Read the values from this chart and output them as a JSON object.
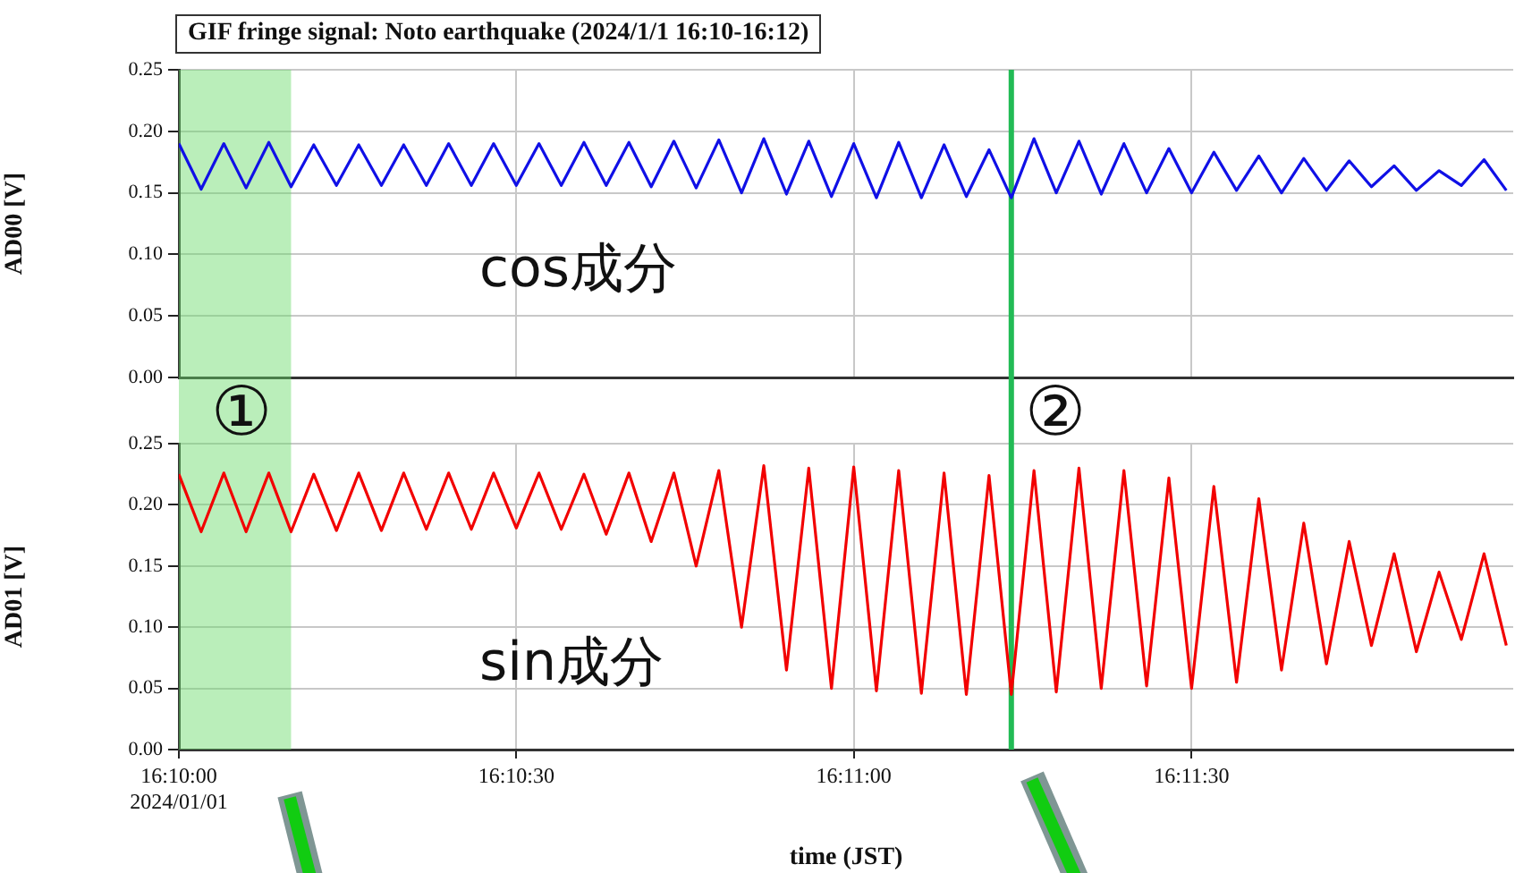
{
  "chart_data": [
    {
      "type": "line",
      "title": "GIF fringe signal: Noto earthquake (2024/1/1 16:10-16:12)",
      "ylabel": "AD00 [V]",
      "annotations": [
        "cos成分",
        "①",
        "②"
      ],
      "tick_labels": "y",
      "grid": true,
      "legend": false,
      "marker": "none",
      "xlim": [
        16.16667,
        16.19961
      ],
      "xticks": [
        16.16667,
        16.175,
        16.18333,
        16.19167
      ],
      "ylim": [
        0,
        0.25
      ],
      "yticks": [
        {
          "value": 0,
          "label": "0.00"
        },
        {
          "value": 0.05,
          "label": "0.05"
        },
        {
          "value": 0.1,
          "label": "0.10"
        },
        {
          "value": 0.15,
          "label": "0.15"
        },
        {
          "value": 0.2,
          "label": "0.20"
        },
        {
          "value": 0.25,
          "label": "0.25"
        }
      ],
      "bands": [
        {
          "axis": "x",
          "from": 16.16667,
          "to": 16.16944,
          "color": "#66d966"
        }
      ],
      "ref_lines": [
        {
          "axis": "x",
          "value": 16.18722,
          "color": "#22bb55"
        }
      ],
      "x": [
        16.16667,
        16.16722,
        16.16778,
        16.16833,
        16.16889,
        16.16944,
        16.17,
        16.17056,
        16.17111,
        16.17167,
        16.17222,
        16.17278,
        16.17333,
        16.17389,
        16.17444,
        16.175,
        16.17556,
        16.17611,
        16.17667,
        16.17722,
        16.17778,
        16.17833,
        16.17889,
        16.17944,
        16.18,
        16.18056,
        16.18111,
        16.18167,
        16.18222,
        16.18278,
        16.18333,
        16.18389,
        16.18444,
        16.185,
        16.18556,
        16.18611,
        16.18667,
        16.18722,
        16.18778,
        16.18833,
        16.18889,
        16.18944,
        16.19,
        16.19056,
        16.19111,
        16.19167,
        16.19222,
        16.19278,
        16.19333,
        16.19389,
        16.19444,
        16.195,
        16.19556,
        16.19611,
        16.19667,
        16.19722,
        16.19778,
        16.19833,
        16.19889,
        16.19944
      ],
      "series": [
        {
          "color": "#1010e6",
          "values": [
            0.19,
            0.153,
            0.19,
            0.154,
            0.191,
            0.155,
            0.189,
            0.156,
            0.189,
            0.156,
            0.189,
            0.156,
            0.19,
            0.156,
            0.19,
            0.156,
            0.19,
            0.156,
            0.191,
            0.156,
            0.191,
            0.155,
            0.192,
            0.154,
            0.193,
            0.15,
            0.194,
            0.149,
            0.192,
            0.147,
            0.19,
            0.146,
            0.191,
            0.146,
            0.189,
            0.147,
            0.185,
            0.146,
            0.194,
            0.15,
            0.192,
            0.149,
            0.19,
            0.15,
            0.186,
            0.15,
            0.183,
            0.152,
            0.18,
            0.15,
            0.178,
            0.152,
            0.176,
            0.155,
            0.172,
            0.152,
            0.168,
            0.156,
            0.177,
            0.152
          ]
        }
      ]
    },
    {
      "type": "line",
      "xlabel": "time (JST)",
      "ylabel": "AD01 [V]",
      "annotations": [
        "sin成分"
      ],
      "grid": true,
      "legend": false,
      "marker": "none",
      "xlim": [
        16.16667,
        16.19961
      ],
      "xticks": [
        {
          "value": 16.16667,
          "label": "16:10:00\n2024/01/01"
        },
        {
          "value": 16.175,
          "label": "16:10:30"
        },
        {
          "value": 16.18333,
          "label": "16:11:00"
        },
        {
          "value": 16.19167,
          "label": "16:11:30"
        }
      ],
      "ylim": [
        0,
        0.25
      ],
      "yticks": [
        {
          "value": 0,
          "label": "0.00"
        },
        {
          "value": 0.05,
          "label": "0.05"
        },
        {
          "value": 0.1,
          "label": "0.10"
        },
        {
          "value": 0.15,
          "label": "0.15"
        },
        {
          "value": 0.2,
          "label": "0.20"
        },
        {
          "value": 0.25,
          "label": "0.25"
        }
      ],
      "bands": [
        {
          "axis": "x",
          "from": 16.16667,
          "to": 16.16944,
          "color": "#66d966"
        }
      ],
      "ref_lines": [
        {
          "axis": "x",
          "value": 16.18722,
          "color": "#22bb55"
        }
      ],
      "x": [
        16.16667,
        16.16722,
        16.16778,
        16.16833,
        16.16889,
        16.16944,
        16.17,
        16.17056,
        16.17111,
        16.17167,
        16.17222,
        16.17278,
        16.17333,
        16.17389,
        16.17444,
        16.175,
        16.17556,
        16.17611,
        16.17667,
        16.17722,
        16.17778,
        16.17833,
        16.17889,
        16.17944,
        16.18,
        16.18056,
        16.18111,
        16.18167,
        16.18222,
        16.18278,
        16.18333,
        16.18389,
        16.18444,
        16.185,
        16.18556,
        16.18611,
        16.18667,
        16.18722,
        16.18778,
        16.18833,
        16.18889,
        16.18944,
        16.19,
        16.19056,
        16.19111,
        16.19167,
        16.19222,
        16.19278,
        16.19333,
        16.19389,
        16.19444,
        16.195,
        16.19556,
        16.19611,
        16.19667,
        16.19722,
        16.19778,
        16.19833,
        16.19889,
        16.19944
      ],
      "series": [
        {
          "color": "#f20000",
          "values": [
            0.225,
            0.178,
            0.226,
            0.178,
            0.226,
            0.178,
            0.225,
            0.179,
            0.226,
            0.179,
            0.226,
            0.18,
            0.226,
            0.18,
            0.226,
            0.181,
            0.226,
            0.18,
            0.225,
            0.176,
            0.226,
            0.17,
            0.226,
            0.15,
            0.228,
            0.1,
            0.232,
            0.065,
            0.23,
            0.05,
            0.231,
            0.048,
            0.228,
            0.046,
            0.226,
            0.045,
            0.224,
            0.045,
            0.228,
            0.047,
            0.23,
            0.05,
            0.228,
            0.052,
            0.222,
            0.05,
            0.215,
            0.055,
            0.205,
            0.065,
            0.185,
            0.07,
            0.17,
            0.085,
            0.16,
            0.08,
            0.145,
            0.09,
            0.16,
            0.085
          ]
        }
      ]
    }
  ]
}
